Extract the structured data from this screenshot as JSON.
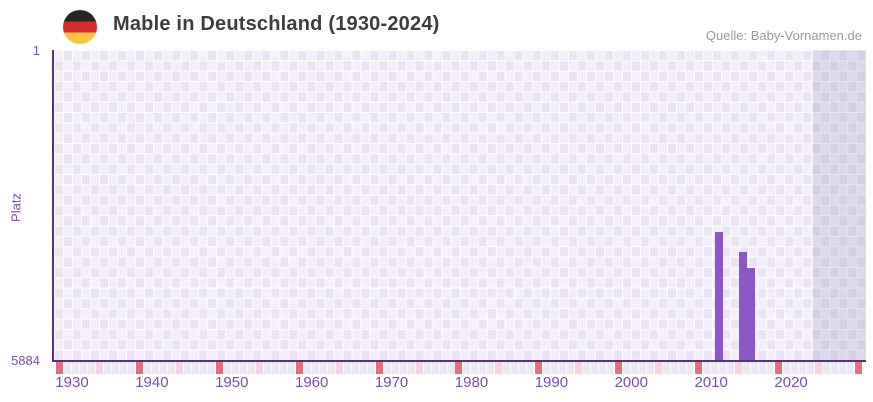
{
  "header": {
    "title": "Mable in Deutschland (1930-2024)",
    "source": "Quelle: Baby-Vornamen.de",
    "flag_icon": "german-flag"
  },
  "chart_data": {
    "type": "bar",
    "title": "Mable in Deutschland (1930-2024)",
    "xlabel": "",
    "ylabel": "Platz",
    "y_axis": {
      "top_label": "1",
      "bottom_label": "5884",
      "min": 1,
      "max": 5884,
      "inverted": true
    },
    "x_axis": {
      "start_year": 1930,
      "end_year": 2024,
      "plot_end_year": 2031,
      "tick_years": [
        1930,
        1940,
        1950,
        1960,
        1970,
        1980,
        1990,
        2000,
        2010,
        2020
      ]
    },
    "series": [
      {
        "name": "Platz",
        "points": [
          {
            "year": 2012,
            "platz": 3455
          },
          {
            "year": 2015,
            "platz": 3832
          },
          {
            "year": 2016,
            "platz": 4138
          }
        ]
      }
    ],
    "markers": {
      "range": [
        1930,
        2030
      ],
      "decade_years": [
        1930,
        1940,
        1950,
        1960,
        1970,
        1980,
        1990,
        2000,
        2010,
        2020,
        2030
      ],
      "half_decade_years": [
        1935,
        1945,
        1955,
        1965,
        1975,
        1985,
        1995,
        2005,
        2015,
        2025
      ]
    },
    "future_band": {
      "from_year": 2025
    },
    "legend": "none",
    "grid": "checkered",
    "colors": {
      "bar": "#8b57c6",
      "axis_line": "#533286",
      "axis_label": "#7a4fae",
      "marker_decade": "#e2707e",
      "marker_half_decade": "#f3d4e0",
      "marker_default": "#ece8f6",
      "checker_light": "#f4f0fb",
      "checker_dark": "#eae4f6"
    }
  }
}
